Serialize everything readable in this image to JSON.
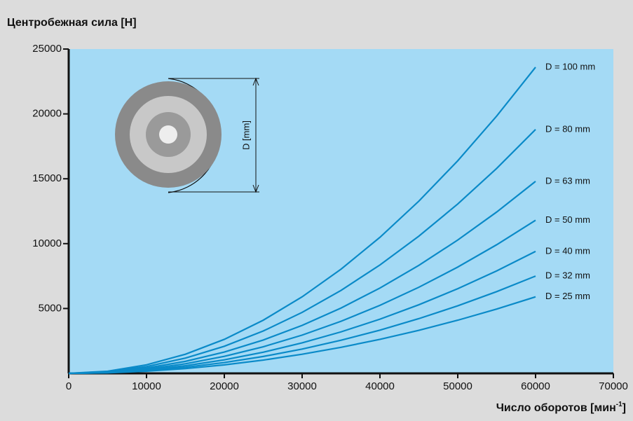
{
  "chart_data": {
    "type": "line",
    "title": "Центробежная сила [Н]",
    "x_label": "Число оборотов  [мин",
    "x_label_superscript": "-1",
    "x_label_end": "]",
    "annotation": "D [mm]",
    "x": [
      0,
      5000,
      10000,
      15000,
      20000,
      25000,
      30000,
      35000,
      40000,
      45000,
      50000,
      55000,
      60000
    ],
    "series": [
      {
        "name": "D = 100 mm",
        "color": "#0a8ac8",
        "values": [
          0,
          164,
          656,
          1475,
          2622,
          4097,
          5900,
          8031,
          10489,
          13275,
          16389,
          19831,
          23600
        ]
      },
      {
        "name": "D = 80 mm",
        "color": "#0a8ac8",
        "values": [
          0,
          131,
          522,
          1175,
          2089,
          3264,
          4700,
          6397,
          8356,
          10575,
          13056,
          15797,
          18800
        ]
      },
      {
        "name": "D = 63 mm",
        "color": "#0a8ac8",
        "values": [
          0,
          103,
          411,
          925,
          1644,
          2569,
          3700,
          5036,
          6578,
          8325,
          10278,
          12436,
          14800
        ]
      },
      {
        "name": "D = 50 mm",
        "color": "#0a8ac8",
        "values": [
          0,
          82,
          328,
          738,
          1311,
          2049,
          2950,
          4015,
          5244,
          6638,
          8194,
          9915,
          11800
        ]
      },
      {
        "name": "D = 40 mm",
        "color": "#0a8ac8",
        "values": [
          0,
          65,
          261,
          588,
          1044,
          1632,
          2350,
          3199,
          4178,
          5288,
          6528,
          7899,
          9400
        ]
      },
      {
        "name": "D = 32 mm",
        "color": "#0a8ac8",
        "values": [
          0,
          52,
          208,
          469,
          833,
          1302,
          1875,
          2552,
          3333,
          4219,
          5208,
          6302,
          7500
        ]
      },
      {
        "name": "D = 25 mm",
        "color": "#0a8ac8",
        "values": [
          0,
          41,
          164,
          369,
          656,
          1024,
          1475,
          2007,
          2622,
          3319,
          4097,
          4958,
          5900
        ]
      }
    ],
    "xlim": [
      0,
      70000
    ],
    "xticks": [
      0,
      10000,
      20000,
      30000,
      40000,
      50000,
      60000,
      70000
    ],
    "ylim": [
      0,
      25000
    ],
    "yticks": [
      5000,
      10000,
      15000,
      20000,
      25000
    ]
  }
}
